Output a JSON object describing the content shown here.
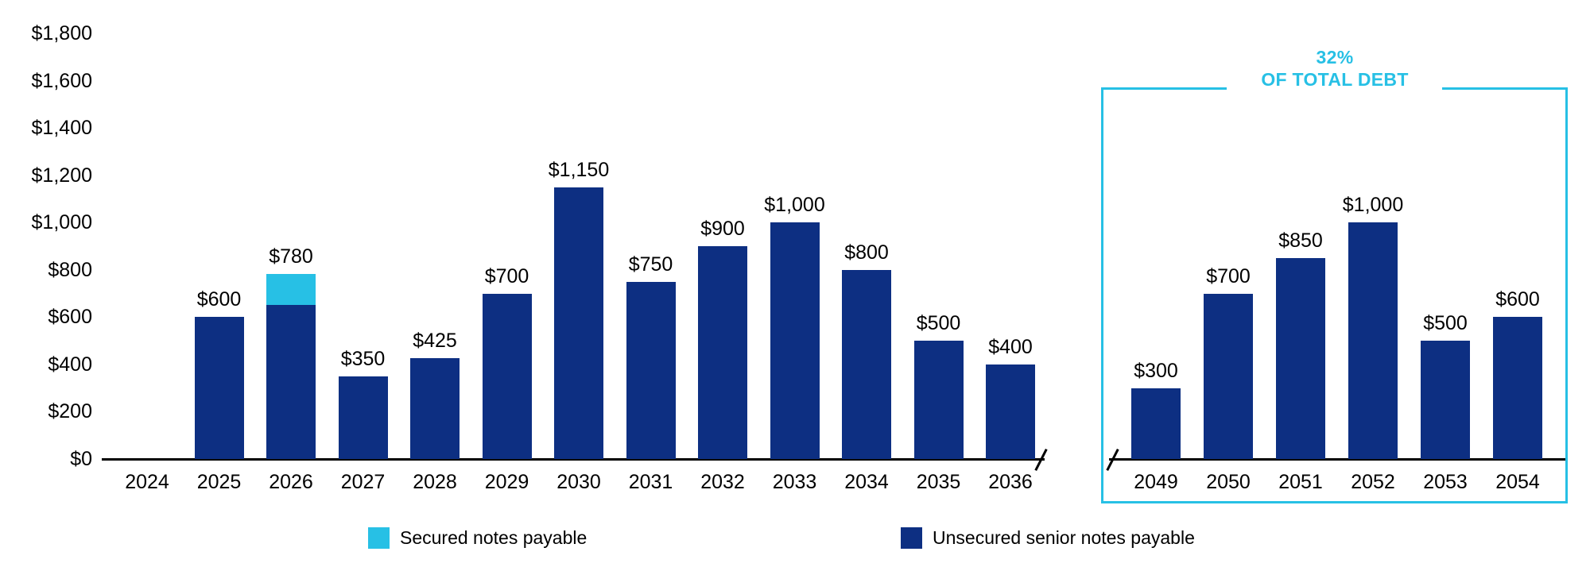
{
  "chart_data": {
    "type": "bar",
    "title": "",
    "xlabel": "",
    "ylabel": "",
    "ylim": [
      0,
      1800
    ],
    "grid": false,
    "legend_position": "bottom",
    "y_ticks": [
      "$0",
      "$200",
      "$400",
      "$600",
      "$800",
      "$1,000",
      "$1,200",
      "$1,400",
      "$1,600",
      "$1,800"
    ],
    "y_tick_values": [
      0,
      200,
      400,
      600,
      800,
      1000,
      1200,
      1400,
      1600,
      1800
    ],
    "series_colors": {
      "secured": "#27C0E5",
      "unsecured": "#0D2F82"
    },
    "groups": [
      {
        "name": "2024-2036",
        "categories": [
          "2024",
          "2025",
          "2026",
          "2027",
          "2028",
          "2029",
          "2030",
          "2031",
          "2032",
          "2033",
          "2034",
          "2035",
          "2036"
        ],
        "series": [
          {
            "name": "Unsecured senior notes payable",
            "values": [
              0,
              600,
              650,
              350,
              425,
              700,
              1150,
              750,
              900,
              1000,
              800,
              500,
              400
            ]
          },
          {
            "name": "Secured notes payable",
            "values": [
              0,
              0,
              130,
              0,
              0,
              0,
              0,
              0,
              0,
              0,
              0,
              0,
              0
            ]
          }
        ],
        "totals_labels": [
          "",
          "$600",
          "$780",
          "$350",
          "$425",
          "$700",
          "$1,150",
          "$750",
          "$900",
          "$1,000",
          "$800",
          "$500",
          "$400"
        ]
      },
      {
        "name": "2049-2054",
        "categories": [
          "2049",
          "2050",
          "2051",
          "2052",
          "2053",
          "2054"
        ],
        "series": [
          {
            "name": "Unsecured senior notes payable",
            "values": [
              300,
              700,
              850,
              1000,
              500,
              600
            ]
          },
          {
            "name": "Secured notes payable",
            "values": [
              0,
              0,
              0,
              0,
              0,
              0
            ]
          }
        ],
        "totals_labels": [
          "$300",
          "$700",
          "$850",
          "$1,000",
          "$500",
          "$600"
        ]
      }
    ],
    "highlight": {
      "label_line1": "32%",
      "label_line2": "OF TOTAL DEBT",
      "applies_to_group": "2049-2054",
      "color": "#27C0E5"
    },
    "legend": [
      {
        "label": "Secured notes payable",
        "color": "#27C0E5"
      },
      {
        "label": "Unsecured senior notes payable",
        "color": "#0D2F82"
      }
    ]
  }
}
